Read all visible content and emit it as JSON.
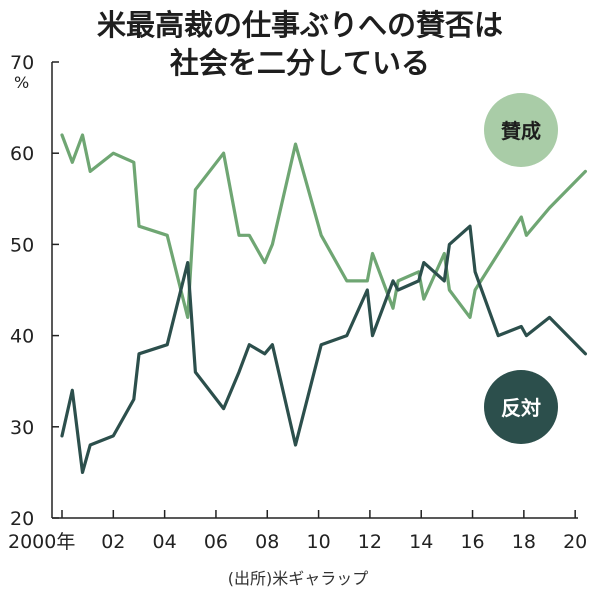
{
  "title": {
    "line1": "米最高裁の仕事ぶりへの賛否は",
    "line2": "社会を二分している"
  },
  "source": "(出所)米ギャラップ",
  "colors": {
    "approve": "#6fa673",
    "disapprove": "#2c4f4c",
    "approve_badge": "#a9cca7",
    "disapprove_badge": "#2c4f4c",
    "axis": "#222222",
    "text": "#1e1e1e"
  },
  "chart_data": {
    "type": "line",
    "ylabel": "%",
    "ylim": [
      20,
      70
    ],
    "yticks": [
      "20",
      "30",
      "40",
      "50",
      "60",
      "70"
    ],
    "xlim": [
      2000,
      2020.5
    ],
    "xticks": [
      {
        "value": 2000,
        "label": "2000年"
      },
      {
        "value": 2002,
        "label": "02"
      },
      {
        "value": 2004,
        "label": "04"
      },
      {
        "value": 2006,
        "label": "06"
      },
      {
        "value": 2008,
        "label": "08"
      },
      {
        "value": 2010,
        "label": "10"
      },
      {
        "value": 2012,
        "label": "12"
      },
      {
        "value": 2014,
        "label": "14"
      },
      {
        "value": 2016,
        "label": "16"
      },
      {
        "value": 2018,
        "label": "18"
      },
      {
        "value": 2020,
        "label": "20"
      }
    ],
    "grid": false,
    "series": [
      {
        "name": "賛成",
        "points": [
          [
            2000.0,
            62
          ],
          [
            2000.4,
            59
          ],
          [
            2000.8,
            62
          ],
          [
            2001.1,
            58
          ],
          [
            2002.0,
            60
          ],
          [
            2002.8,
            59
          ],
          [
            2003.0,
            52
          ],
          [
            2004.1,
            51
          ],
          [
            2004.9,
            42
          ],
          [
            2005.2,
            56
          ],
          [
            2006.3,
            60
          ],
          [
            2006.9,
            51
          ],
          [
            2007.3,
            51
          ],
          [
            2007.9,
            48
          ],
          [
            2008.2,
            50
          ],
          [
            2009.1,
            61
          ],
          [
            2010.1,
            51
          ],
          [
            2011.1,
            46
          ],
          [
            2011.9,
            46
          ],
          [
            2012.1,
            49
          ],
          [
            2012.9,
            43
          ],
          [
            2013.1,
            46
          ],
          [
            2013.9,
            47
          ],
          [
            2014.1,
            44
          ],
          [
            2014.9,
            49
          ],
          [
            2015.1,
            45
          ],
          [
            2015.9,
            42
          ],
          [
            2016.1,
            45
          ],
          [
            2017.0,
            49
          ],
          [
            2017.9,
            53
          ],
          [
            2018.1,
            51
          ],
          [
            2019.0,
            54
          ],
          [
            2020.4,
            58
          ]
        ]
      },
      {
        "name": "反対",
        "points": [
          [
            2000.0,
            29
          ],
          [
            2000.4,
            34
          ],
          [
            2000.8,
            25
          ],
          [
            2001.1,
            28
          ],
          [
            2002.0,
            29
          ],
          [
            2002.8,
            33
          ],
          [
            2003.0,
            38
          ],
          [
            2004.1,
            39
          ],
          [
            2004.9,
            48
          ],
          [
            2005.2,
            36
          ],
          [
            2006.3,
            32
          ],
          [
            2006.9,
            36
          ],
          [
            2007.3,
            39
          ],
          [
            2007.9,
            38
          ],
          [
            2008.2,
            39
          ],
          [
            2009.1,
            28
          ],
          [
            2010.1,
            39
          ],
          [
            2011.1,
            40
          ],
          [
            2011.9,
            45
          ],
          [
            2012.1,
            40
          ],
          [
            2012.9,
            46
          ],
          [
            2013.1,
            45
          ],
          [
            2013.9,
            46
          ],
          [
            2014.1,
            48
          ],
          [
            2014.9,
            46
          ],
          [
            2015.1,
            50
          ],
          [
            2015.9,
            52
          ],
          [
            2016.1,
            47
          ],
          [
            2017.0,
            40
          ],
          [
            2017.9,
            41
          ],
          [
            2018.1,
            40
          ],
          [
            2019.0,
            42
          ],
          [
            2020.4,
            38
          ]
        ]
      }
    ]
  }
}
